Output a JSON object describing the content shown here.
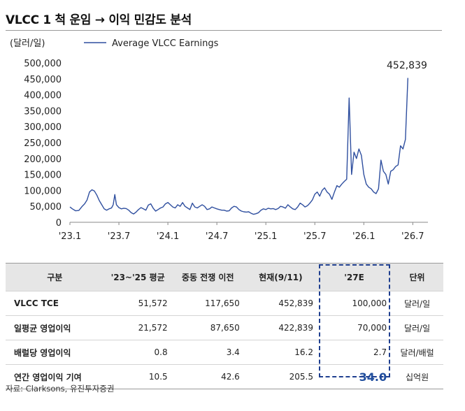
{
  "title": "VLCC 1 척 운임 → 이익 민감도 분석",
  "chart_data": {
    "type": "line",
    "unit_label": "(달러/일)",
    "legend": "Average VLCC Earnings",
    "annotation": "452,839",
    "y_ticks": [
      "500,000",
      "450,000",
      "400,000",
      "350,000",
      "300,000",
      "250,000",
      "200,000",
      "150,000",
      "100,000",
      "50,000",
      "0"
    ],
    "x_ticks": [
      "'23.1",
      "'23.7",
      "'24.1",
      "'24.7",
      "'25.1",
      "'25.7",
      "'26.1",
      "'26.7"
    ],
    "ylim": [
      0,
      500000
    ],
    "xlim": [
      0,
      43
    ],
    "series": [
      {
        "name": "Average VLCC Earnings",
        "color": "#2f4f9f",
        "points": [
          [
            0,
            48000
          ],
          [
            0.3,
            42000
          ],
          [
            0.7,
            36000
          ],
          [
            1.1,
            37000
          ],
          [
            1.5,
            50000
          ],
          [
            1.8,
            58000
          ],
          [
            2.1,
            70000
          ],
          [
            2.4,
            95000
          ],
          [
            2.7,
            102000
          ],
          [
            3.0,
            98000
          ],
          [
            3.3,
            85000
          ],
          [
            3.6,
            68000
          ],
          [
            3.9,
            55000
          ],
          [
            4.2,
            42000
          ],
          [
            4.5,
            38000
          ],
          [
            4.8,
            42000
          ],
          [
            5.1,
            45000
          ],
          [
            5.3,
            55000
          ],
          [
            5.5,
            87000
          ],
          [
            5.7,
            55000
          ],
          [
            6.0,
            46000
          ],
          [
            6.3,
            42000
          ],
          [
            6.6,
            44000
          ],
          [
            6.9,
            43000
          ],
          [
            7.2,
            38000
          ],
          [
            7.5,
            30000
          ],
          [
            7.8,
            26000
          ],
          [
            8.1,
            32000
          ],
          [
            8.4,
            40000
          ],
          [
            8.7,
            46000
          ],
          [
            9.0,
            42000
          ],
          [
            9.3,
            38000
          ],
          [
            9.6,
            54000
          ],
          [
            9.9,
            58000
          ],
          [
            10.2,
            44000
          ],
          [
            10.5,
            35000
          ],
          [
            10.8,
            40000
          ],
          [
            11.1,
            45000
          ],
          [
            11.4,
            48000
          ],
          [
            11.7,
            58000
          ],
          [
            12.0,
            62000
          ],
          [
            12.3,
            55000
          ],
          [
            12.6,
            48000
          ],
          [
            12.9,
            45000
          ],
          [
            13.2,
            55000
          ],
          [
            13.5,
            50000
          ],
          [
            13.8,
            62000
          ],
          [
            14.1,
            50000
          ],
          [
            14.4,
            45000
          ],
          [
            14.7,
            40000
          ],
          [
            15.0,
            60000
          ],
          [
            15.3,
            48000
          ],
          [
            15.6,
            45000
          ],
          [
            15.9,
            50000
          ],
          [
            16.2,
            55000
          ],
          [
            16.5,
            50000
          ],
          [
            16.8,
            40000
          ],
          [
            17.1,
            42000
          ],
          [
            17.4,
            48000
          ],
          [
            17.7,
            45000
          ],
          [
            18.0,
            42000
          ],
          [
            18.3,
            40000
          ],
          [
            18.6,
            38000
          ],
          [
            18.9,
            38000
          ],
          [
            19.2,
            35000
          ],
          [
            19.5,
            36000
          ],
          [
            19.8,
            45000
          ],
          [
            20.1,
            50000
          ],
          [
            20.4,
            48000
          ],
          [
            20.7,
            40000
          ],
          [
            21.0,
            35000
          ],
          [
            21.3,
            33000
          ],
          [
            21.6,
            32000
          ],
          [
            21.9,
            33000
          ],
          [
            22.2,
            28000
          ],
          [
            22.5,
            25000
          ],
          [
            22.8,
            27000
          ],
          [
            23.1,
            30000
          ],
          [
            23.4,
            38000
          ],
          [
            23.7,
            42000
          ],
          [
            24.0,
            40000
          ],
          [
            24.3,
            44000
          ],
          [
            24.6,
            42000
          ],
          [
            24.9,
            43000
          ],
          [
            25.2,
            40000
          ],
          [
            25.5,
            43000
          ],
          [
            25.8,
            50000
          ],
          [
            26.1,
            48000
          ],
          [
            26.4,
            44000
          ],
          [
            26.7,
            55000
          ],
          [
            27.0,
            48000
          ],
          [
            27.3,
            42000
          ],
          [
            27.6,
            40000
          ],
          [
            27.9,
            48000
          ],
          [
            28.2,
            60000
          ],
          [
            28.5,
            55000
          ],
          [
            28.8,
            48000
          ],
          [
            29.1,
            52000
          ],
          [
            29.4,
            60000
          ],
          [
            29.7,
            70000
          ],
          [
            30.0,
            88000
          ],
          [
            30.3,
            95000
          ],
          [
            30.6,
            82000
          ],
          [
            30.9,
            100000
          ],
          [
            31.2,
            108000
          ],
          [
            31.5,
            95000
          ],
          [
            31.8,
            88000
          ],
          [
            32.1,
            72000
          ],
          [
            32.4,
            95000
          ],
          [
            32.7,
            115000
          ],
          [
            33.0,
            110000
          ],
          [
            33.3,
            120000
          ],
          [
            33.6,
            128000
          ],
          [
            33.9,
            135000
          ],
          [
            34.2,
            390000
          ],
          [
            34.5,
            150000
          ],
          [
            34.8,
            220000
          ],
          [
            35.1,
            200000
          ],
          [
            35.4,
            230000
          ],
          [
            35.7,
            210000
          ],
          [
            36.0,
            150000
          ],
          [
            36.3,
            120000
          ],
          [
            36.6,
            110000
          ],
          [
            36.9,
            105000
          ],
          [
            37.2,
            95000
          ],
          [
            37.5,
            90000
          ],
          [
            37.8,
            105000
          ],
          [
            38.1,
            195000
          ],
          [
            38.4,
            160000
          ],
          [
            38.7,
            150000
          ],
          [
            39.0,
            120000
          ],
          [
            39.3,
            160000
          ],
          [
            39.6,
            165000
          ],
          [
            39.9,
            175000
          ],
          [
            40.2,
            180000
          ],
          [
            40.5,
            240000
          ],
          [
            40.8,
            230000
          ],
          [
            41.1,
            260000
          ],
          [
            41.4,
            452839
          ]
        ]
      }
    ]
  },
  "table": {
    "headers": [
      "구분",
      "'23~'25 평균",
      "중동 전쟁 이전",
      "현재(9/11)",
      "'27E",
      "단위"
    ],
    "rows": [
      [
        "VLCC TCE",
        "51,572",
        "117,650",
        "452,839",
        "100,000",
        "달러/일"
      ],
      [
        "일평균 영업이익",
        "21,572",
        "87,650",
        "422,839",
        "70,000",
        "달러/일"
      ],
      [
        "배럴당 영업이익",
        "0.8",
        "3.4",
        "16.2",
        "2.7",
        "달러/배럴"
      ],
      [
        "연간 영업이익 기여",
        "10.5",
        "42.6",
        "205.5",
        "34.0",
        "십억원"
      ]
    ]
  },
  "source": "자료: Clarksons, 유진투자증권"
}
